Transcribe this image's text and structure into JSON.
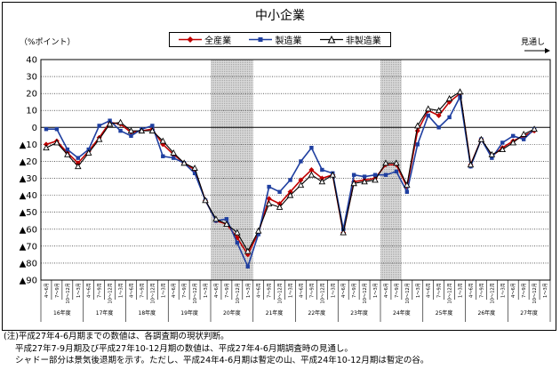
{
  "chart_data": {
    "type": "line",
    "title": "中小企業",
    "ylabel": "（%ポイント）",
    "forecast_label": "見通し",
    "ylim": [
      -90,
      40
    ],
    "yticks": [
      {
        "v": 40,
        "label": "40"
      },
      {
        "v": 30,
        "label": "30"
      },
      {
        "v": 20,
        "label": "20"
      },
      {
        "v": 10,
        "label": "10"
      },
      {
        "v": 0,
        "label": "0"
      },
      {
        "v": -10,
        "label": "▲10"
      },
      {
        "v": -20,
        "label": "▲20"
      },
      {
        "v": -30,
        "label": "▲30"
      },
      {
        "v": -40,
        "label": "▲40"
      },
      {
        "v": -50,
        "label": "▲50"
      },
      {
        "v": -60,
        "label": "▲60"
      },
      {
        "v": -70,
        "label": "▲70"
      },
      {
        "v": -80,
        "label": "▲80"
      },
      {
        "v": -90,
        "label": "▲90"
      }
    ],
    "quarter_labels": [
      "4～6月",
      "7～9月",
      "10～12月",
      "1～3月"
    ],
    "year_labels": [
      "16年度",
      "17年度",
      "18年度",
      "19年度",
      "20年度",
      "21年度",
      "22年度",
      "23年度",
      "24年度",
      "25年度",
      "26年度",
      "27年度"
    ],
    "shaded_regions": [
      [
        16,
        19
      ],
      [
        32,
        33
      ]
    ],
    "grid": true,
    "series": [
      {
        "name": "全産業",
        "color": "#c00000",
        "marker": "diamond",
        "values": [
          -10,
          -8,
          -15,
          -21,
          -14,
          -6,
          3,
          2,
          -3,
          -2,
          -1,
          -10,
          -16,
          -21,
          -25,
          -43,
          -55,
          -57,
          -65,
          -75,
          -62,
          -42,
          -45,
          -38,
          -31,
          -25,
          -30,
          -28,
          -62,
          -32,
          -31,
          -30,
          -22,
          -22,
          -35,
          -2,
          10,
          7,
          15,
          20,
          -22,
          -7,
          -17,
          -12,
          -8,
          -5,
          -2
        ]
      },
      {
        "name": "製造業",
        "color": "#1f3fa0",
        "marker": "square",
        "values": [
          -1,
          -1,
          -13,
          -18,
          -13,
          1,
          4,
          -2,
          -5,
          -1,
          1,
          -17,
          -18,
          -21,
          -27,
          -43,
          -55,
          -54,
          -68,
          -82,
          -63,
          -35,
          -38,
          -31,
          -20,
          -12,
          -25,
          -27,
          -60,
          -28,
          -29,
          -28,
          -28,
          -26,
          -38,
          -10,
          7,
          0,
          6,
          18,
          -23,
          -7,
          -18,
          -9,
          -5,
          -7,
          -1
        ]
      },
      {
        "name": "非製造業",
        "color": "#000000",
        "marker": "triangle",
        "values": [
          -12,
          -9,
          -16,
          -23,
          -15,
          -7,
          2,
          3,
          -2,
          -2,
          -2,
          -8,
          -15,
          -21,
          -24,
          -43,
          -54,
          -57,
          -62,
          -73,
          -61,
          -45,
          -47,
          -40,
          -34,
          -28,
          -32,
          -28,
          -62,
          -33,
          -32,
          -31,
          -21,
          -21,
          -34,
          1,
          11,
          10,
          17,
          21,
          -22,
          -7,
          -16,
          -13,
          -9,
          -4,
          -1
        ]
      }
    ]
  },
  "notes": [
    "(注)平成27年4-6月期までの数値は、各調査期の現状判断。",
    "平成27年7-9月期及び平成27年10-12月期の数値は、平成27年4-6月期調査時の見通し。",
    "シャドー部分は景気後退期を示す。ただし、平成24年4-6月期は暫定の山、平成24年10-12月期は暫定の谷。"
  ]
}
